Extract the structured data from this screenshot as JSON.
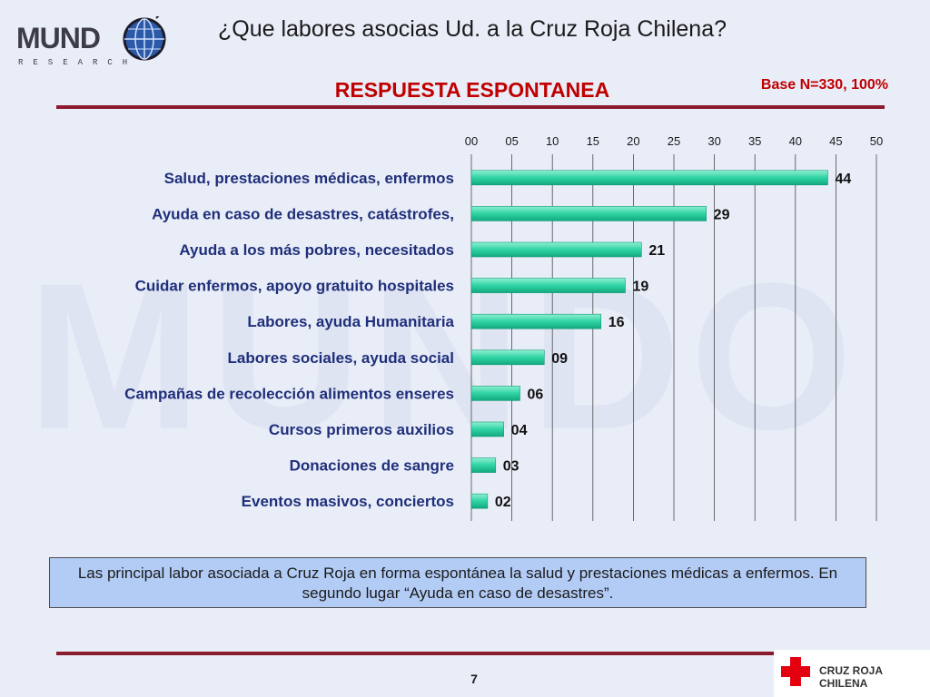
{
  "header": {
    "title": "¿Que labores asocias Ud. a la Cruz Roja Chilena?",
    "subtitle": "RESPUESTA ESPONTANEA",
    "base": "Base N=330, 100%"
  },
  "logo": {
    "word": "MUND",
    "sub": "RESEARCH"
  },
  "chart_data": {
    "type": "bar",
    "orientation": "horizontal",
    "categories": [
      "Salud, prestaciones médicas, enfermos",
      "Ayuda en caso de desastres, catástrofes,",
      "Ayuda a los más pobres, necesitados",
      "Cuidar enfermos, apoyo gratuito hospitales",
      "Labores, ayuda Humanitaria",
      "Labores sociales, ayuda social",
      "Campañas de recolección alimentos enseres",
      "Cursos primeros auxilios",
      "Donaciones de sangre",
      "Eventos masivos, conciertos"
    ],
    "values": [
      44,
      29,
      21,
      19,
      16,
      9,
      6,
      4,
      3,
      2
    ],
    "value_labels": [
      "44",
      "29",
      "21",
      "19",
      "16",
      "09",
      "06",
      "04",
      "03",
      "02"
    ],
    "xlim": [
      0,
      50
    ],
    "ticks": [
      "00",
      "05",
      "10",
      "15",
      "20",
      "25",
      "30",
      "35",
      "40",
      "45",
      "50"
    ],
    "x_axis_position": "top",
    "grid": true,
    "bar_color": "#2fd3a3"
  },
  "note": {
    "text": "Las principal labor asociada a Cruz Roja en forma espontánea  la salud y prestaciones médicas a enfermos. En segundo lugar “Ayuda en caso de desastres”."
  },
  "footer": {
    "page": "7",
    "brand": "CRUZ ROJA CHILENA",
    "cross_color": "#e3000f"
  }
}
